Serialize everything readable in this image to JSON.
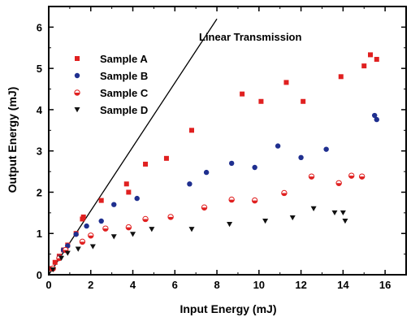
{
  "chart_data": {
    "type": "scatter",
    "xlabel": "Input Energy (mJ)",
    "ylabel": "Output Energy (mJ)",
    "xlim": [
      0,
      17
    ],
    "ylim": [
      0,
      6.5
    ],
    "xticks": [
      "0",
      "2",
      "4",
      "6",
      "8",
      "10",
      "12",
      "14",
      "16"
    ],
    "yticks": [
      "0",
      "1",
      "2",
      "3",
      "4",
      "5",
      "6"
    ],
    "legend_position": "top-left",
    "annotation": "Linear Transmission",
    "line": {
      "name": "Linear Transmission",
      "x": [
        0,
        8
      ],
      "y": [
        0,
        6.2
      ]
    },
    "series": [
      {
        "name": "Sample A",
        "marker": "square",
        "color": "#e02020",
        "x": [
          0.15,
          0.3,
          0.5,
          0.7,
          0.9,
          1.3,
          1.6,
          1.65,
          2.5,
          3.7,
          3.8,
          4.6,
          5.6,
          6.8,
          9.2,
          10.1,
          11.3,
          12.1,
          13.9,
          15.0,
          15.3,
          15.6
        ],
        "y": [
          0.15,
          0.3,
          0.45,
          0.6,
          0.72,
          1.0,
          1.35,
          1.4,
          1.8,
          2.2,
          2.0,
          2.68,
          2.82,
          3.5,
          4.38,
          4.2,
          4.66,
          4.2,
          4.8,
          5.06,
          5.33,
          5.22
        ]
      },
      {
        "name": "Sample B",
        "marker": "circle",
        "color": "#1f2f8f",
        "x": [
          0.2,
          0.5,
          0.7,
          0.9,
          1.3,
          1.8,
          2.5,
          3.1,
          4.2,
          6.7,
          7.5,
          8.7,
          9.8,
          10.9,
          12.0,
          13.2,
          15.5,
          15.6
        ],
        "y": [
          0.15,
          0.42,
          0.6,
          0.7,
          0.98,
          1.18,
          1.3,
          1.7,
          1.85,
          2.2,
          2.48,
          2.7,
          2.6,
          3.12,
          2.84,
          3.04,
          3.86,
          3.76
        ]
      },
      {
        "name": "Sample C",
        "marker": "half-circle",
        "color": "#e02020",
        "x": [
          0.2,
          0.5,
          0.8,
          1.6,
          2.0,
          2.7,
          3.8,
          4.6,
          5.8,
          7.4,
          8.7,
          9.8,
          11.2,
          12.5,
          13.8,
          14.4,
          14.9
        ],
        "y": [
          0.15,
          0.4,
          0.6,
          0.8,
          0.95,
          1.12,
          1.15,
          1.35,
          1.4,
          1.63,
          1.82,
          1.8,
          1.98,
          2.38,
          2.22,
          2.4,
          2.38
        ]
      },
      {
        "name": "Sample D",
        "marker": "triangle-down",
        "color": "#111111",
        "x": [
          0.2,
          0.6,
          0.9,
          1.4,
          2.1,
          3.1,
          4.0,
          4.9,
          6.8,
          8.6,
          10.3,
          11.6,
          12.6,
          13.6,
          14.0,
          14.1
        ],
        "y": [
          0.12,
          0.4,
          0.52,
          0.62,
          0.68,
          0.92,
          0.98,
          1.1,
          1.1,
          1.22,
          1.3,
          1.38,
          1.6,
          1.5,
          1.5,
          1.3
        ]
      }
    ]
  }
}
